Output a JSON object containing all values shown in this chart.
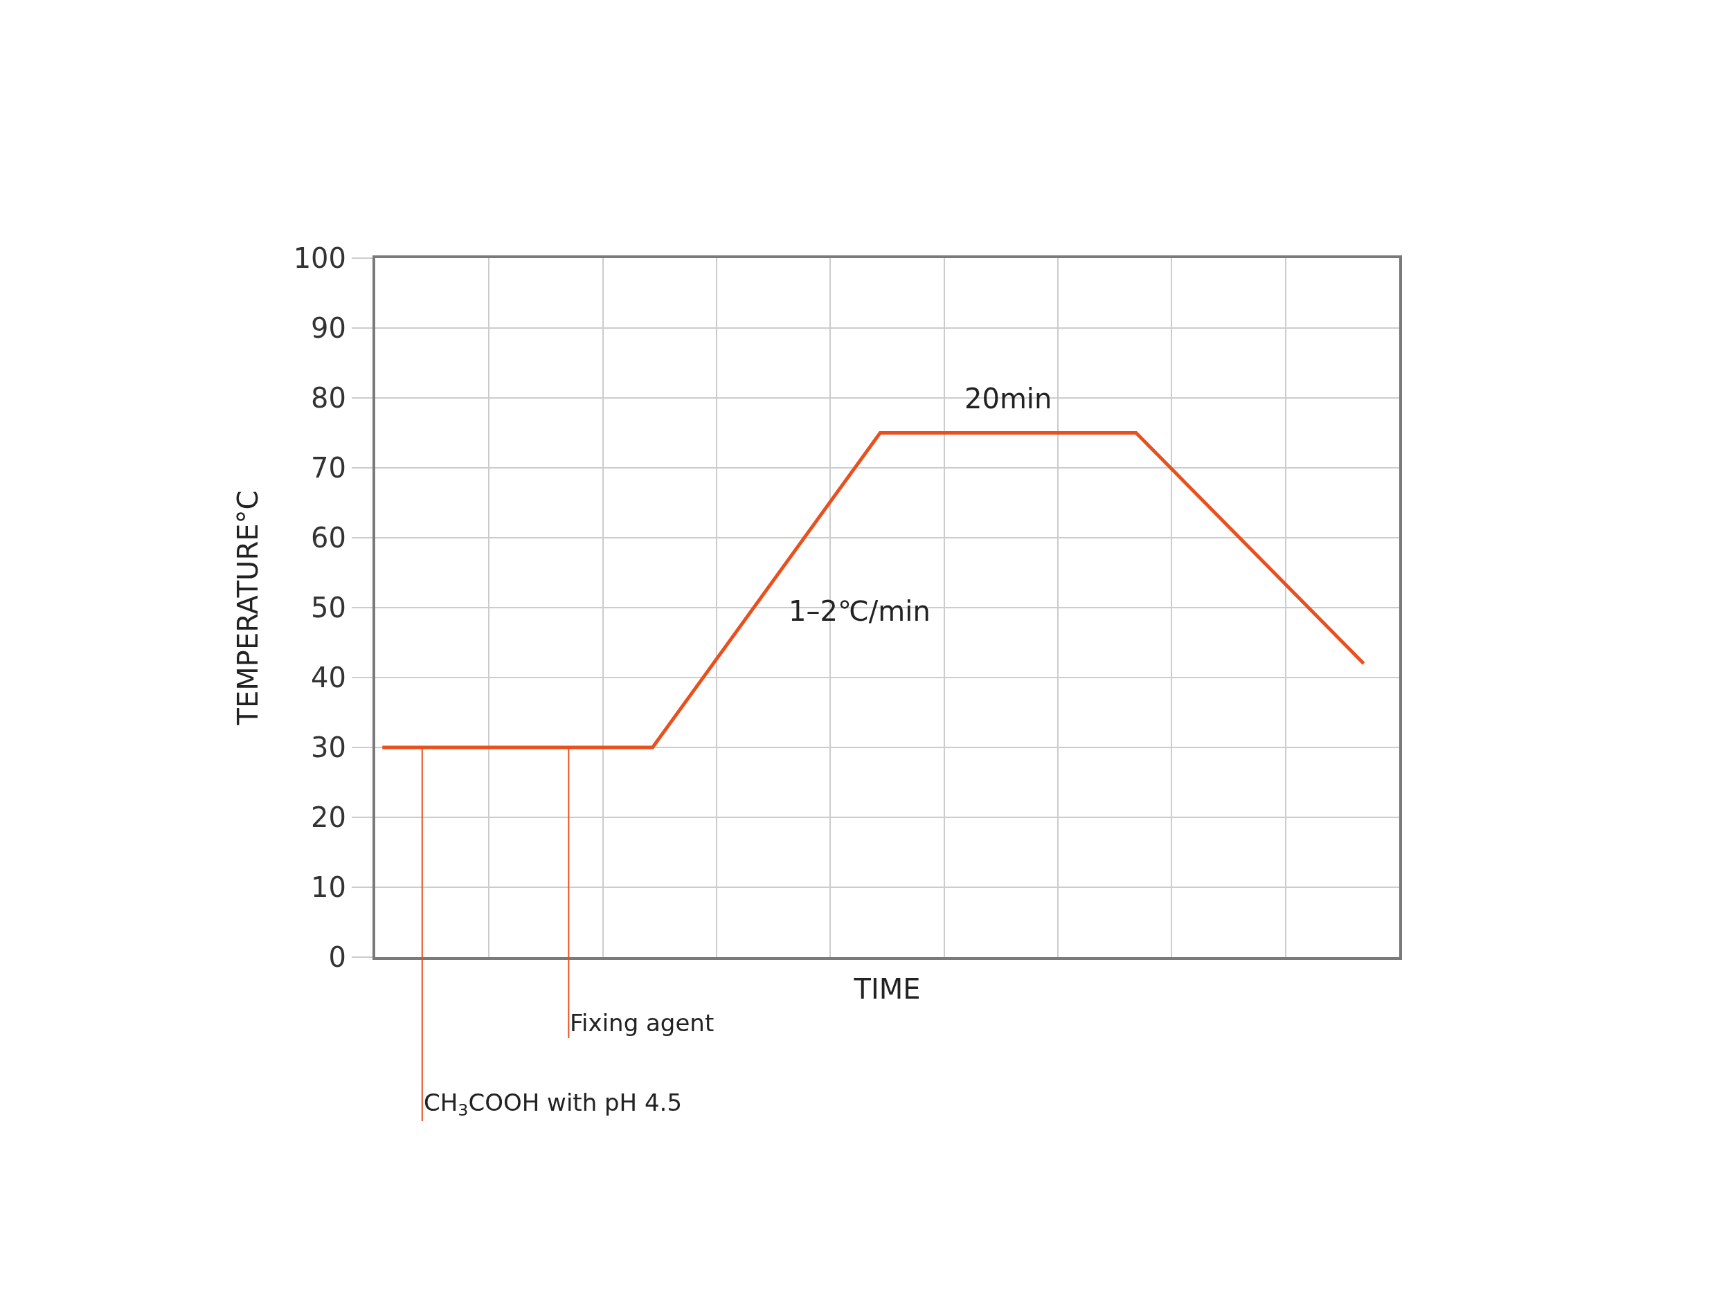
{
  "chart_data": {
    "type": "line",
    "xlabel": "TIME",
    "ylabel": "TEMPERATURE°C",
    "categories": [
      null,
      null,
      null,
      null,
      null,
      null,
      null,
      null,
      null,
      null,
      null,
      null,
      null,
      null,
      null,
      null,
      null,
      null,
      null,
      null,
      null,
      null,
      null,
      null,
      null,
      null,
      null,
      null,
      null,
      null,
      null,
      null,
      null,
      null,
      null,
      null,
      null,
      null,
      null,
      null,
      null,
      null,
      null,
      null,
      null,
      null,
      null,
      null,
      null,
      null,
      null,
      null,
      null,
      null,
      null,
      null,
      null,
      null,
      null,
      null,
      null,
      null,
      null,
      null,
      null,
      null,
      null,
      null,
      null,
      null,
      null,
      null
    ],
    "series": [
      {
        "color": "#e8501e",
        "values": [
          30,
          null,
          null,
          null,
          null,
          null,
          null,
          null,
          null,
          null,
          null,
          null,
          null,
          null,
          null,
          null,
          null,
          null,
          null,
          30,
          null,
          null,
          null,
          null,
          null,
          null,
          null,
          null,
          null,
          null,
          null,
          null,
          null,
          null,
          null,
          75,
          null,
          null,
          null,
          null,
          null,
          null,
          null,
          null,
          null,
          null,
          null,
          null,
          null,
          null,
          null,
          null,
          null,
          75,
          null,
          null,
          null,
          null,
          null,
          null,
          null,
          null,
          null,
          null,
          null,
          null,
          null,
          null,
          null,
          42,
          null,
          null
        ]
      }
    ],
    "ylim": [
      0,
      100
    ],
    "yticks": [
      0,
      10,
      20,
      30,
      40,
      50,
      60,
      70,
      80,
      90,
      100
    ],
    "tick_labels": "y",
    "grid": true,
    "marker": "none",
    "line_style": "solid",
    "annotations": [
      "20min",
      "1–2℃/min",
      "Fixing agent",
      "CH$_{3}$COOH with pH 4.5"
    ]
  }
}
